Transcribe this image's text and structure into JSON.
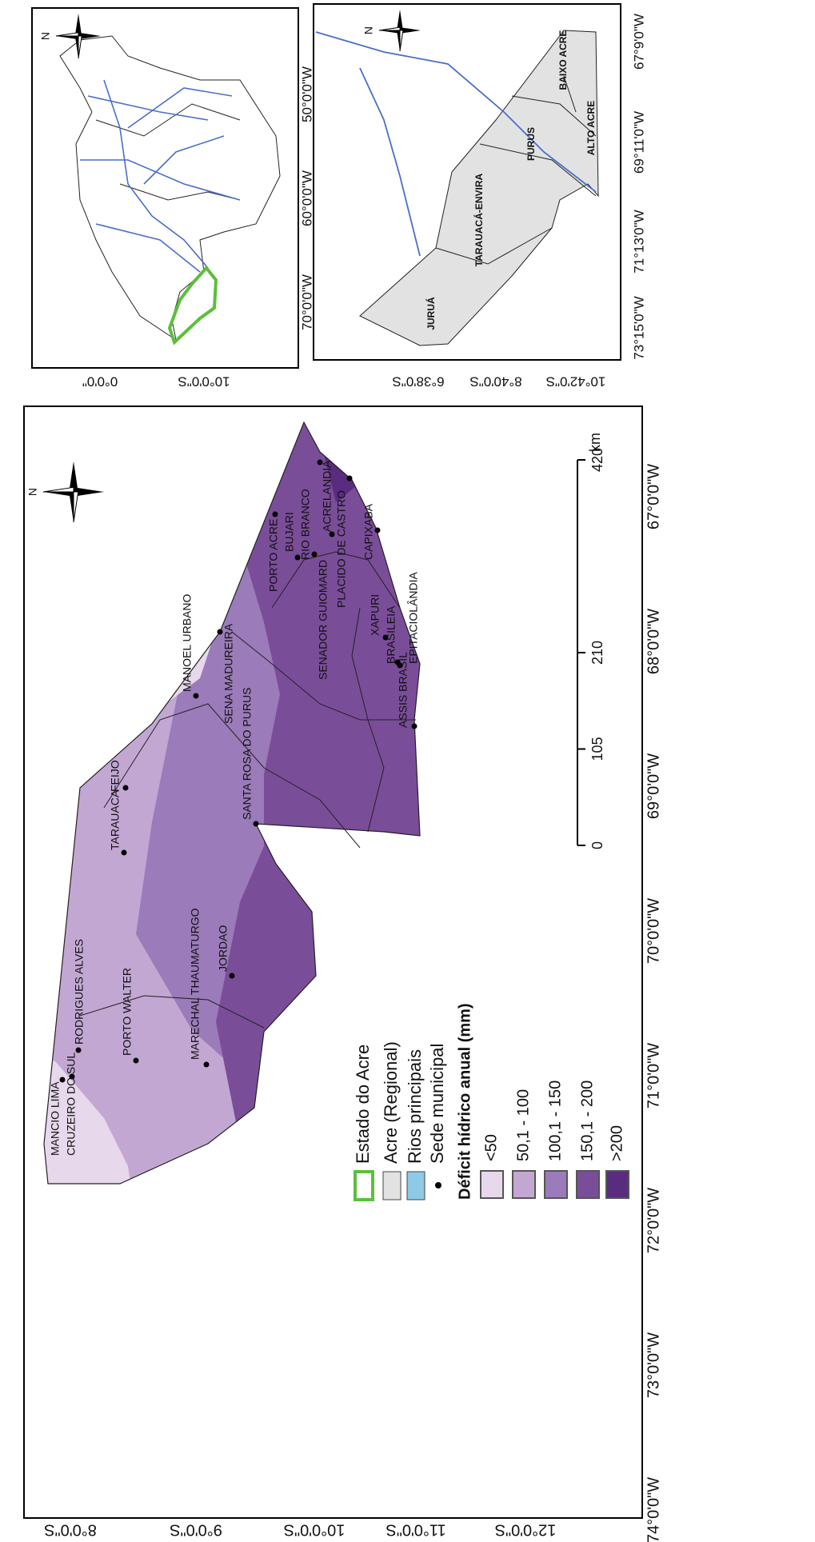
{
  "north_label": "N",
  "main_map": {
    "lat_labels": [
      "8°0'0\"S",
      "9°0'0\"S",
      "10°0'0\"S",
      "11°0'0\"S",
      "12°0'0\"S"
    ],
    "lon_labels": [
      "74°0'0\"W",
      "73°0'0\"W",
      "72°0'0\"W",
      "71°0'0\"W",
      "70°0'0\"W",
      "69°0'0\"W",
      "68°0'0\"W",
      "67°0'0\"W"
    ],
    "cities": [
      "MANCIO LIMA",
      "CRUZEIRO DO SUL",
      "RODRIGUES ALVES",
      "PORTO WALTER",
      "MARECHAL THAUMATURGO",
      "JORDAO",
      "TARAUACA",
      "FEIJO",
      "MANOEL URBANO",
      "SENA MADUREIRA",
      "SANTA ROSA DO PURUS",
      "PORTO ACRE",
      "BUJARI",
      "RIO BRANCO",
      "ACRELANDIA",
      "SENADOR GUIOMARD",
      "PLACIDO DE CASTRO",
      "CAPIXABA",
      "XAPURI",
      "BRASILEIA",
      "EPITACIOLÂNDIA",
      "ASSIS BRASIL"
    ],
    "scale_bar": {
      "ticks": [
        0,
        105,
        210,
        420
      ],
      "unit": "km"
    }
  },
  "legend": {
    "items": [
      "Estado do Acre",
      "Acre (Regional)",
      "Rios principais",
      "Sede municipal"
    ],
    "title": "Déficit hídrico anual (mm)",
    "classes": [
      {
        "label": "<50",
        "color": "#e8d8ec"
      },
      {
        "label": "50,1 - 100",
        "color": "#c3a7d3"
      },
      {
        "label": "100,1 - 150",
        "color": "#9b7bb9"
      },
      {
        "label": "150,1 - 200",
        "color": "#7a4d99"
      },
      {
        "label": ">200",
        "color": "#5a2c80"
      }
    ]
  },
  "inset_brazil": {
    "lon_labels": [
      "50°0'0\"W",
      "60°0'0\"W",
      "70°0'0\"W"
    ],
    "lat_labels": [
      "0°0'0\"",
      "10°0'0\"S"
    ]
  },
  "inset_acre": {
    "lon_labels": [
      "67°9'0\"W",
      "69°11'0\"W",
      "71°13'0\"W",
      "73°15'0\"W"
    ],
    "lat_labels": [
      "6°38'0\"S",
      "8°40'0\"S",
      "10°42'0\"S"
    ],
    "regions": [
      "JURUÁ",
      "TARAUACÁ-ENVIRA",
      "PURUS",
      "BAIXO ACRE",
      "ALTO ACRE"
    ]
  }
}
